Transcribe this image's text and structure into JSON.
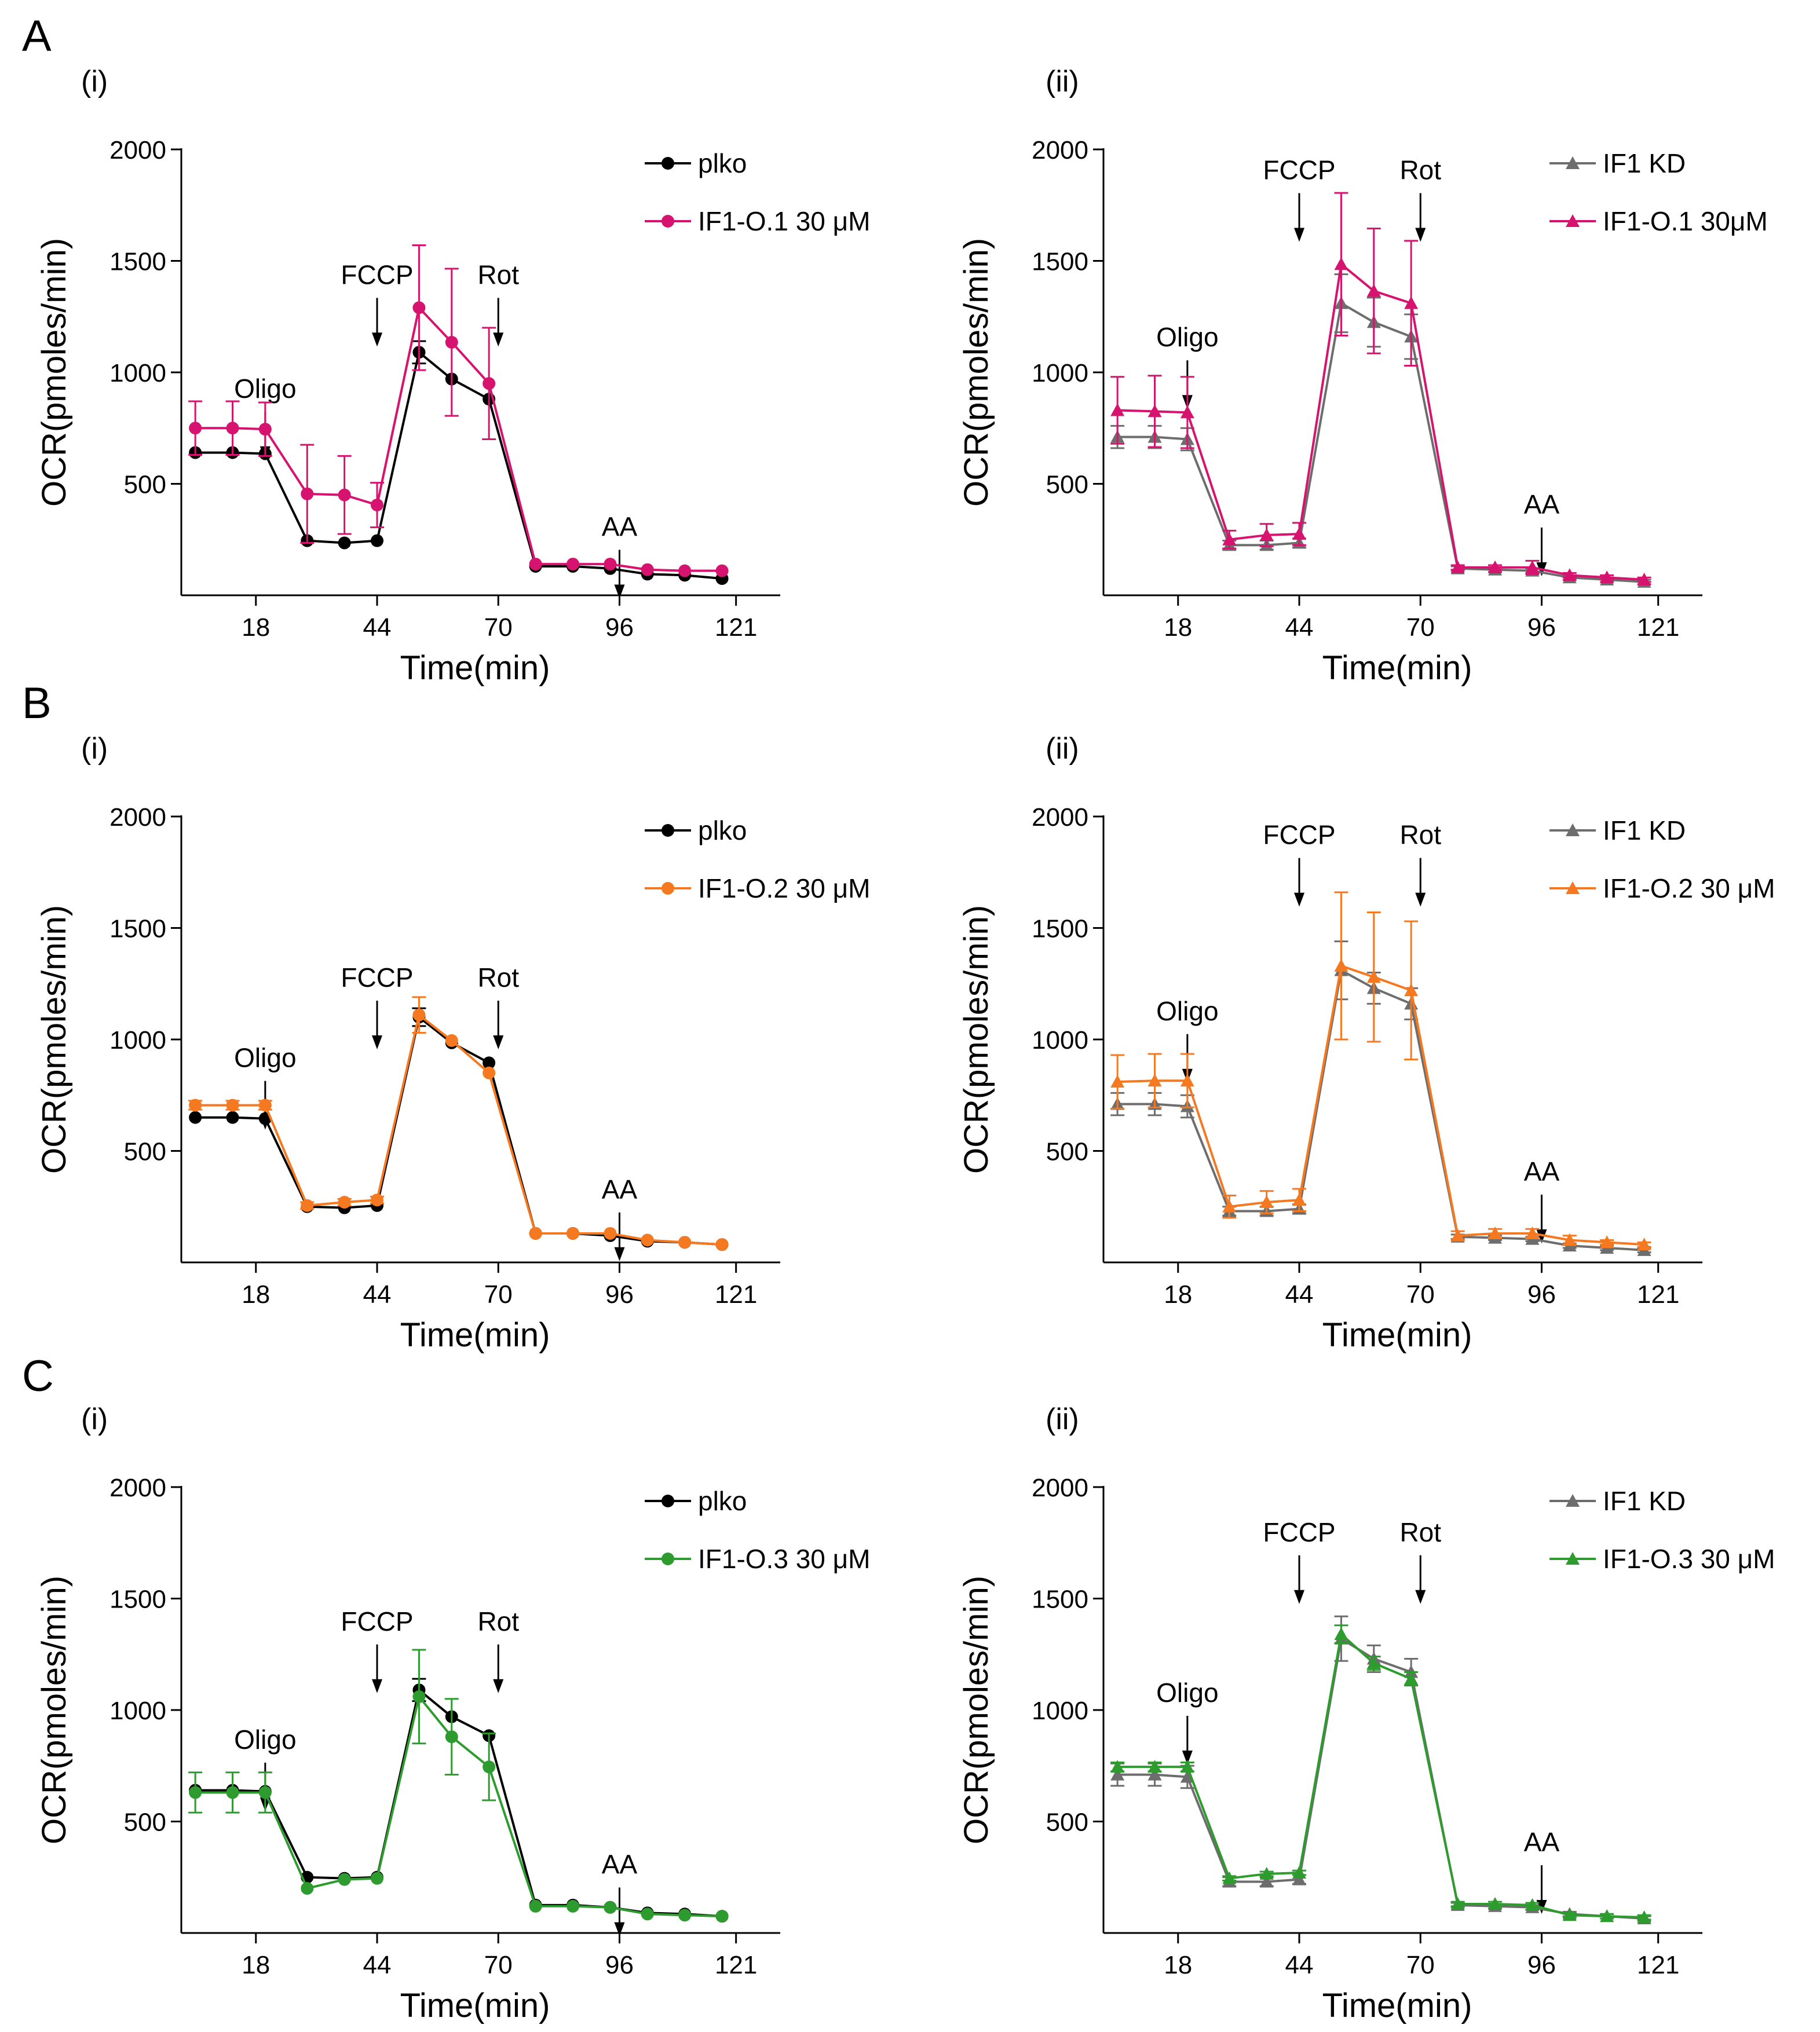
{
  "figure": {
    "panel_letters": [
      "A",
      "B",
      "C"
    ],
    "sub_labels": [
      "(i)",
      "(ii)"
    ]
  },
  "colors": {
    "black": "#000000",
    "gray": "#6d6d6d",
    "magenta": "#d6136e",
    "orange": "#f47920",
    "green": "#2e9b2e"
  },
  "chart_data": [
    {
      "id": "A-i",
      "type": "line",
      "panel": "A",
      "sub": "(i)",
      "xlabel": "Time(min)",
      "ylabel": "OCR(pmoles/min)",
      "xlim": [
        2,
        128
      ],
      "ylim": [
        0,
        2000
      ],
      "xticks": [
        18,
        44,
        70,
        96,
        121
      ],
      "yticks": [
        500,
        1000,
        1500,
        2000
      ],
      "x": [
        5,
        13,
        20,
        29,
        37,
        44,
        53,
        60,
        68,
        78,
        86,
        94,
        102,
        110,
        118
      ],
      "series": [
        {
          "name": "plko",
          "color": "black",
          "marker": "circle",
          "values": [
            640,
            640,
            635,
            245,
            235,
            245,
            1090,
            970,
            880,
            130,
            130,
            120,
            95,
            90,
            75
          ],
          "errors": [
            0,
            0,
            0,
            0,
            0,
            0,
            50,
            0,
            0,
            0,
            0,
            0,
            0,
            0,
            0
          ]
        },
        {
          "name": "IF1-O.1 30 μM",
          "color": "magenta",
          "marker": "circle",
          "values": [
            750,
            750,
            745,
            455,
            450,
            405,
            1290,
            1135,
            950,
            140,
            140,
            140,
            115,
            110,
            110
          ],
          "errors": [
            120,
            120,
            120,
            220,
            175,
            100,
            280,
            330,
            250,
            0,
            0,
            0,
            0,
            0,
            0
          ]
        }
      ],
      "annotations": [
        {
          "label": "Oligo",
          "x": 20,
          "y": 850
        },
        {
          "label": "FCCP",
          "x": 44,
          "y": 1360
        },
        {
          "label": "Rot",
          "x": 70,
          "y": 1360
        },
        {
          "label": "AA",
          "x": 96,
          "y": 230
        }
      ]
    },
    {
      "id": "A-ii",
      "type": "line",
      "panel": "A",
      "sub": "(ii)",
      "xlabel": "Time(min)",
      "ylabel": "OCR(pmoles/min)",
      "xlim": [
        2,
        128
      ],
      "ylim": [
        0,
        2000
      ],
      "xticks": [
        18,
        44,
        70,
        96,
        121
      ],
      "yticks": [
        500,
        1000,
        1500,
        2000
      ],
      "x": [
        5,
        13,
        20,
        29,
        37,
        44,
        53,
        60,
        68,
        78,
        86,
        94,
        102,
        110,
        118
      ],
      "series": [
        {
          "name": "IF1 KD",
          "color": "gray",
          "marker": "triangle",
          "values": [
            710,
            710,
            700,
            225,
            225,
            235,
            1310,
            1225,
            1160,
            120,
            115,
            110,
            80,
            70,
            60
          ],
          "errors": [
            50,
            50,
            50,
            20,
            20,
            20,
            130,
            110,
            100,
            10,
            10,
            10,
            10,
            10,
            10
          ]
        },
        {
          "name": "IF1-O.1 30μM",
          "color": "magenta",
          "marker": "triangle",
          "values": [
            830,
            825,
            820,
            250,
            270,
            275,
            1485,
            1365,
            1310,
            125,
            125,
            125,
            90,
            80,
            70
          ],
          "errors": [
            150,
            160,
            160,
            40,
            50,
            50,
            320,
            280,
            280,
            10,
            10,
            30,
            10,
            10,
            10
          ]
        }
      ],
      "annotations": [
        {
          "label": "Oligo",
          "x": 20,
          "y": 1080
        },
        {
          "label": "FCCP",
          "x": 44,
          "y": 1830
        },
        {
          "label": "Rot",
          "x": 70,
          "y": 1830
        },
        {
          "label": "AA",
          "x": 96,
          "y": 330
        }
      ]
    },
    {
      "id": "B-i",
      "type": "line",
      "panel": "B",
      "sub": "(i)",
      "xlabel": "Time(min)",
      "ylabel": "OCR(pmoles/min)",
      "xlim": [
        2,
        128
      ],
      "ylim": [
        0,
        2000
      ],
      "xticks": [
        18,
        44,
        70,
        96,
        121
      ],
      "yticks": [
        500,
        1000,
        1500,
        2000
      ],
      "x": [
        5,
        13,
        20,
        29,
        37,
        44,
        53,
        60,
        68,
        78,
        86,
        94,
        102,
        110,
        118
      ],
      "series": [
        {
          "name": "plko",
          "color": "black",
          "marker": "circle",
          "values": [
            650,
            650,
            645,
            250,
            245,
            255,
            1100,
            985,
            895,
            130,
            130,
            120,
            95,
            90,
            80
          ],
          "errors": [
            0,
            0,
            0,
            0,
            0,
            0,
            40,
            0,
            0,
            0,
            0,
            0,
            0,
            0,
            0
          ]
        },
        {
          "name": "IF1-O.2 30 μM",
          "color": "orange",
          "marker": "circle",
          "values": [
            705,
            705,
            705,
            255,
            270,
            280,
            1110,
            995,
            850,
            130,
            130,
            130,
            100,
            90,
            80
          ],
          "errors": [
            20,
            20,
            20,
            15,
            15,
            15,
            80,
            0,
            0,
            0,
            0,
            0,
            0,
            0,
            0
          ]
        }
      ],
      "annotations": [
        {
          "label": "Oligo",
          "x": 20,
          "y": 840
        },
        {
          "label": "FCCP",
          "x": 44,
          "y": 1200
        },
        {
          "label": "Rot",
          "x": 70,
          "y": 1200
        },
        {
          "label": "AA",
          "x": 96,
          "y": 250
        }
      ]
    },
    {
      "id": "B-ii",
      "type": "line",
      "panel": "B",
      "sub": "(ii)",
      "xlabel": "Time(min)",
      "ylabel": "OCR(pmoles/min)",
      "xlim": [
        2,
        128
      ],
      "ylim": [
        0,
        2000
      ],
      "xticks": [
        18,
        44,
        70,
        96,
        121
      ],
      "yticks": [
        500,
        1000,
        1500,
        2000
      ],
      "x": [
        5,
        13,
        20,
        29,
        37,
        44,
        53,
        60,
        68,
        78,
        86,
        94,
        102,
        110,
        118
      ],
      "series": [
        {
          "name": "IF1 KD",
          "color": "gray",
          "marker": "triangle",
          "values": [
            710,
            710,
            700,
            230,
            230,
            240,
            1310,
            1230,
            1160,
            115,
            110,
            105,
            75,
            65,
            55
          ],
          "errors": [
            50,
            50,
            50,
            20,
            20,
            20,
            130,
            70,
            70,
            10,
            10,
            10,
            10,
            10,
            10
          ]
        },
        {
          "name": "IF1-O.2 30 μM",
          "color": "orange",
          "marker": "triangle",
          "values": [
            810,
            815,
            815,
            250,
            270,
            280,
            1330,
            1280,
            1220,
            120,
            130,
            130,
            100,
            90,
            80
          ],
          "errors": [
            120,
            120,
            120,
            50,
            50,
            50,
            330,
            290,
            310,
            20,
            20,
            20,
            20,
            10,
            10
          ]
        }
      ],
      "annotations": [
        {
          "label": "Oligo",
          "x": 20,
          "y": 1050
        },
        {
          "label": "FCCP",
          "x": 44,
          "y": 1840
        },
        {
          "label": "Rot",
          "x": 70,
          "y": 1840
        },
        {
          "label": "AA",
          "x": 96,
          "y": 330
        }
      ]
    },
    {
      "id": "C-i",
      "type": "line",
      "panel": "C",
      "sub": "(i)",
      "xlabel": "Time(min)",
      "ylabel": "OCR(pmoles/min)",
      "xlim": [
        2,
        128
      ],
      "ylim": [
        0,
        2000
      ],
      "xticks": [
        18,
        44,
        70,
        96,
        121
      ],
      "yticks": [
        500,
        1000,
        1500,
        2000
      ],
      "x": [
        5,
        13,
        20,
        29,
        37,
        44,
        53,
        60,
        68,
        78,
        86,
        94,
        102,
        110,
        118
      ],
      "series": [
        {
          "name": "plko",
          "color": "black",
          "marker": "circle",
          "values": [
            640,
            640,
            635,
            250,
            245,
            250,
            1090,
            970,
            885,
            125,
            125,
            115,
            90,
            85,
            75
          ],
          "errors": [
            0,
            0,
            0,
            0,
            0,
            0,
            50,
            0,
            0,
            0,
            0,
            0,
            0,
            0,
            0
          ]
        },
        {
          "name": "IF1-O.3 30 μM",
          "color": "green",
          "marker": "circle",
          "values": [
            630,
            630,
            630,
            200,
            240,
            245,
            1060,
            880,
            745,
            120,
            120,
            115,
            85,
            80,
            75
          ],
          "errors": [
            90,
            90,
            90,
            0,
            0,
            0,
            210,
            170,
            150,
            0,
            0,
            0,
            0,
            0,
            0
          ]
        }
      ],
      "annotations": [
        {
          "label": "Oligo",
          "x": 20,
          "y": 790
        },
        {
          "label": "FCCP",
          "x": 44,
          "y": 1320
        },
        {
          "label": "Rot",
          "x": 70,
          "y": 1320
        },
        {
          "label": "AA",
          "x": 96,
          "y": 230
        }
      ]
    },
    {
      "id": "C-ii",
      "type": "line",
      "panel": "C",
      "sub": "(ii)",
      "xlabel": "Time(min)",
      "ylabel": "OCR(pmoles/min)",
      "xlim": [
        2,
        128
      ],
      "ylim": [
        0,
        2000
      ],
      "xticks": [
        18,
        44,
        70,
        96,
        121
      ],
      "yticks": [
        500,
        1000,
        1500,
        2000
      ],
      "x": [
        5,
        13,
        20,
        29,
        37,
        44,
        53,
        60,
        68,
        78,
        86,
        94,
        102,
        110,
        118
      ],
      "series": [
        {
          "name": "IF1 KD",
          "color": "gray",
          "marker": "triangle",
          "values": [
            710,
            710,
            700,
            230,
            230,
            240,
            1320,
            1230,
            1170,
            125,
            120,
            115,
            85,
            75,
            65
          ],
          "errors": [
            50,
            50,
            50,
            20,
            20,
            20,
            100,
            60,
            60,
            10,
            10,
            10,
            10,
            10,
            10
          ]
        },
        {
          "name": "IF1-O.3 30 μM",
          "color": "green",
          "marker": "triangle",
          "values": [
            745,
            745,
            745,
            245,
            265,
            270,
            1340,
            1210,
            1140,
            130,
            130,
            125,
            80,
            75,
            70
          ],
          "errors": [
            20,
            20,
            20,
            10,
            10,
            10,
            40,
            30,
            30,
            10,
            10,
            10,
            10,
            10,
            10
          ]
        }
      ],
      "annotations": [
        {
          "label": "Oligo",
          "x": 20,
          "y": 1000
        },
        {
          "label": "FCCP",
          "x": 44,
          "y": 1720
        },
        {
          "label": "Rot",
          "x": 70,
          "y": 1720
        },
        {
          "label": "AA",
          "x": 96,
          "y": 330
        }
      ]
    }
  ]
}
